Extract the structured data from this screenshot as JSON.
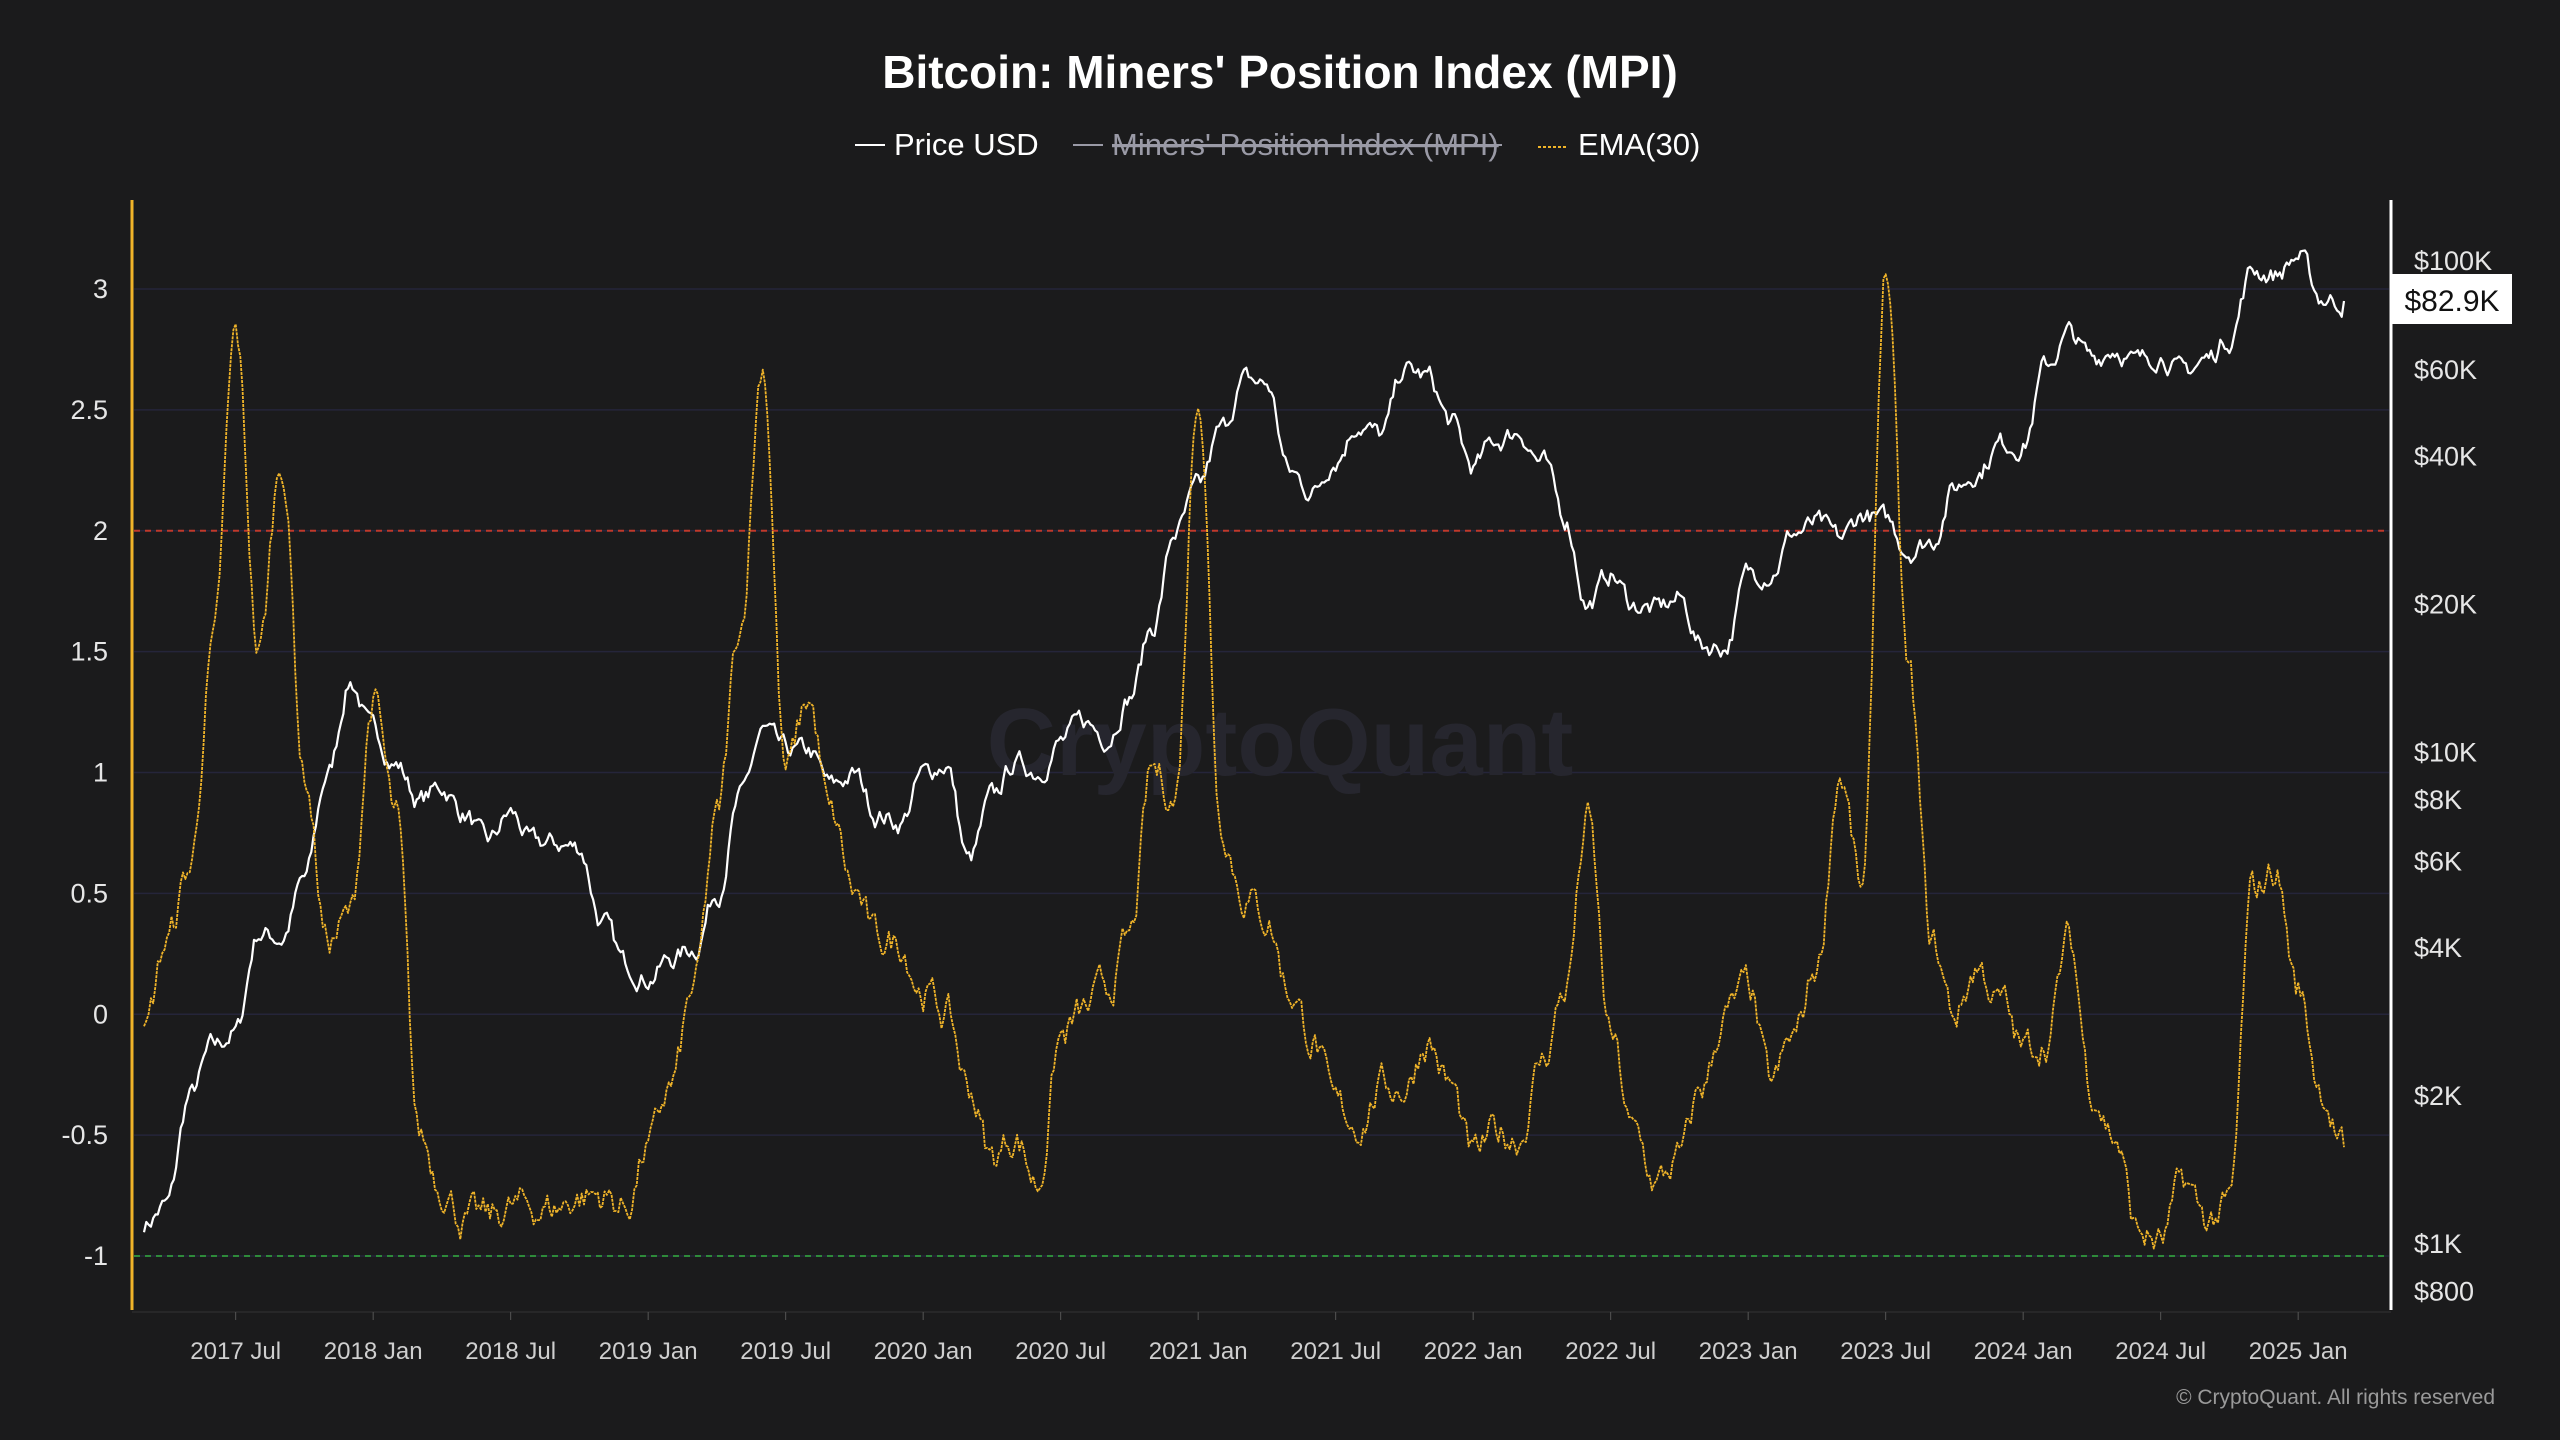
{
  "chart_data": {
    "type": "line",
    "title": "Bitcoin: Miners' Position Index (MPI)",
    "legend": [
      {
        "name": "Price USD",
        "color": "#ffffff",
        "hidden": false
      },
      {
        "name": "Miners' Position Index (MPI)",
        "color": "#9a9aa6",
        "hidden": true
      },
      {
        "name": "EMA(30)",
        "color": "#f0b429",
        "hidden": false
      }
    ],
    "legend_position": "top-center",
    "x_start": "2017-03",
    "x_ticks": [
      "2017 Jul",
      "2018 Jan",
      "2018 Jul",
      "2019 Jan",
      "2019 Jul",
      "2020 Jan",
      "2020 Jul",
      "2021 Jan",
      "2021 Jul",
      "2022 Jan",
      "2022 Jul",
      "2023 Jan",
      "2023 Jul",
      "2024 Jan",
      "2024 Jul",
      "2025 Jan"
    ],
    "y_left": {
      "ticks": [
        3,
        2.5,
        2,
        1.5,
        1,
        0.5,
        0,
        -0.5,
        -1
      ],
      "range": [
        -1.11,
        3.3
      ]
    },
    "y_right": {
      "scale": "log",
      "ticks": [
        {
          "v": 100000,
          "l": "$100K"
        },
        {
          "v": 60000,
          "l": "$60K"
        },
        {
          "v": 40000,
          "l": "$40K"
        },
        {
          "v": 20000,
          "l": "$20K"
        },
        {
          "v": 10000,
          "l": "$10K"
        },
        {
          "v": 8000,
          "l": "$8K"
        },
        {
          "v": 6000,
          "l": "$6K"
        },
        {
          "v": 4000,
          "l": "$4K"
        },
        {
          "v": 2000,
          "l": "$2K"
        },
        {
          "v": 1000,
          "l": "$1K"
        },
        {
          "v": 800,
          "l": "$800"
        }
      ]
    },
    "reference_lines": [
      {
        "value": 2,
        "color": "#c0392b"
      },
      {
        "value": -1,
        "color": "#2e8b3a"
      }
    ],
    "current_price_label": "$82.9K",
    "series": [
      {
        "name": "Price USD",
        "axis": "right",
        "color": "#ffffff",
        "monthly": [
          1100,
          1200,
          2000,
          2500,
          2700,
          4300,
          4200,
          5500,
          9000,
          14000,
          11000,
          9500,
          8000,
          8500,
          7500,
          6500,
          7500,
          6500,
          6500,
          6400,
          4500,
          3700,
          3500,
          3800,
          4000,
          5200,
          8000,
          11000,
          10000,
          10000,
          8500,
          9000,
          7500,
          7200,
          9000,
          9500,
          6000,
          8000,
          9500,
          9200,
          10500,
          11500,
          10800,
          13000,
          18000,
          28000,
          34000,
          45000,
          57000,
          56000,
          37000,
          34000,
          40000,
          47000,
          44000,
          60000,
          58000,
          47000,
          38000,
          43000,
          45000,
          39000,
          30000,
          20000,
          23000,
          20000,
          19500,
          20500,
          16500,
          16500,
          23000,
          23500,
          28000,
          29000,
          27000,
          30500,
          29500,
          26000,
          27000,
          34500,
          37500,
          42500,
          42500,
          61000,
          71000,
          63000,
          67000,
          62000,
          65000,
          59000,
          63000,
          70000,
          96000,
          94000,
          102000,
          84000,
          82900
        ]
      },
      {
        "name": "EMA(30)",
        "axis": "left",
        "color": "#f0b429",
        "monthly": [
          -0.1,
          0.3,
          0.6,
          1.5,
          2.8,
          1.5,
          2.3,
          1.0,
          0.3,
          0.4,
          1.3,
          0.8,
          -0.5,
          -0.7,
          -0.85,
          -0.85,
          -0.8,
          -0.8,
          -0.8,
          -0.75,
          -0.75,
          -0.8,
          -0.55,
          -0.3,
          0.1,
          0.8,
          1.6,
          2.7,
          1.0,
          1.3,
          0.8,
          0.5,
          0.3,
          0.3,
          0.1,
          0.0,
          -0.3,
          -0.6,
          -0.5,
          -0.7,
          -0.1,
          0.0,
          0.1,
          0.3,
          1.0,
          0.9,
          2.6,
          0.8,
          0.5,
          0.4,
          0.1,
          -0.1,
          -0.4,
          -0.45,
          -0.3,
          -0.3,
          -0.1,
          -0.3,
          -0.6,
          -0.5,
          -0.5,
          -0.2,
          0.1,
          0.8,
          -0.1,
          -0.5,
          -0.7,
          -0.6,
          -0.3,
          0.0,
          0.1,
          -0.3,
          -0.1,
          0.2,
          1.0,
          0.5,
          3.1,
          1.4,
          0.3,
          0.0,
          0.2,
          0.05,
          -0.15,
          -0.1,
          0.3,
          -0.3,
          -0.5,
          -0.9,
          -0.95,
          -0.7,
          -0.85,
          -0.8,
          0.5,
          0.6,
          0.1,
          -0.3,
          -0.55
        ]
      }
    ],
    "watermark": "CryptoQuant",
    "copyright": "© CryptoQuant. All rights reserved"
  }
}
